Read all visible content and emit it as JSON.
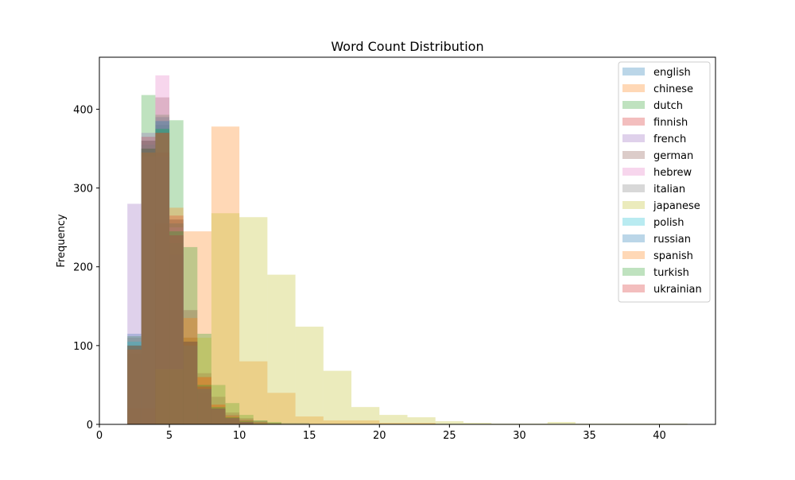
{
  "chart_data": {
    "type": "histogram",
    "title": "Word Count Distribution",
    "xlabel": "",
    "ylabel": "Frequency",
    "xlim": [
      0,
      44
    ],
    "ylim": [
      0,
      466
    ],
    "x_ticks": [
      0,
      5,
      10,
      15,
      20,
      25,
      30,
      35,
      40
    ],
    "y_ticks": [
      0,
      100,
      200,
      300,
      400
    ],
    "grid": false,
    "legend_position": "upper right",
    "bar_alpha": 0.3,
    "series": [
      {
        "name": "english",
        "color": "#1f77b4",
        "bins": [
          [
            2,
            3,
            115
          ],
          [
            3,
            4,
            360
          ],
          [
            4,
            5,
            390
          ],
          [
            5,
            6,
            260
          ],
          [
            6,
            7,
            110
          ],
          [
            7,
            8,
            40
          ],
          [
            8,
            9,
            20
          ],
          [
            9,
            10,
            10
          ],
          [
            10,
            12,
            5
          ],
          [
            12,
            15,
            2
          ]
        ]
      },
      {
        "name": "chinese",
        "color": "#ff7f0e",
        "bins": [
          [
            2,
            4,
            20
          ],
          [
            4,
            6,
            255
          ],
          [
            6,
            8,
            245
          ],
          [
            8,
            10,
            378
          ],
          [
            10,
            12,
            80
          ],
          [
            12,
            14,
            40
          ],
          [
            14,
            16,
            10
          ],
          [
            16,
            20,
            5
          ],
          [
            20,
            24,
            2
          ]
        ]
      },
      {
        "name": "dutch",
        "color": "#2ca02c",
        "bins": [
          [
            2,
            3,
            112
          ],
          [
            3,
            4,
            418
          ],
          [
            4,
            5,
            393
          ],
          [
            5,
            6,
            386
          ],
          [
            6,
            7,
            225
          ],
          [
            7,
            8,
            115
          ],
          [
            8,
            9,
            50
          ],
          [
            9,
            10,
            27
          ],
          [
            10,
            11,
            12
          ],
          [
            11,
            12,
            5
          ],
          [
            12,
            13,
            3
          ]
        ]
      },
      {
        "name": "finnish",
        "color": "#d62728",
        "bins": [
          [
            2,
            3,
            95
          ],
          [
            3,
            4,
            365
          ],
          [
            4,
            5,
            345
          ],
          [
            5,
            6,
            265
          ],
          [
            6,
            7,
            110
          ],
          [
            7,
            8,
            60
          ],
          [
            8,
            9,
            25
          ],
          [
            9,
            10,
            12
          ],
          [
            10,
            11,
            6
          ],
          [
            11,
            12,
            3
          ]
        ]
      },
      {
        "name": "french",
        "color": "#9467bd",
        "bins": [
          [
            2,
            3,
            280
          ],
          [
            3,
            4,
            370
          ],
          [
            4,
            5,
            340
          ],
          [
            5,
            6,
            215
          ],
          [
            6,
            7,
            105
          ],
          [
            7,
            8,
            45
          ],
          [
            8,
            9,
            20
          ],
          [
            9,
            10,
            8
          ],
          [
            10,
            11,
            3
          ]
        ]
      },
      {
        "name": "german",
        "color": "#8c564b",
        "bins": [
          [
            2,
            3,
            90
          ],
          [
            3,
            4,
            360
          ],
          [
            4,
            5,
            415
          ],
          [
            5,
            6,
            260
          ],
          [
            6,
            7,
            145
          ],
          [
            7,
            8,
            65
          ],
          [
            8,
            9,
            35
          ],
          [
            9,
            10,
            15
          ],
          [
            10,
            11,
            8
          ],
          [
            11,
            12,
            4
          ],
          [
            12,
            13,
            2
          ]
        ]
      },
      {
        "name": "hebrew",
        "color": "#e377c2",
        "bins": [
          [
            2,
            3,
            95
          ],
          [
            3,
            4,
            340
          ],
          [
            4,
            5,
            443
          ],
          [
            5,
            6,
            250
          ],
          [
            6,
            7,
            100
          ],
          [
            7,
            8,
            45
          ],
          [
            8,
            9,
            18
          ],
          [
            9,
            10,
            7
          ],
          [
            10,
            11,
            3
          ]
        ]
      },
      {
        "name": "italian",
        "color": "#7f7f7f",
        "bins": [
          [
            2,
            3,
            110
          ],
          [
            3,
            4,
            355
          ],
          [
            4,
            5,
            380
          ],
          [
            5,
            6,
            230
          ],
          [
            6,
            7,
            110
          ],
          [
            7,
            8,
            50
          ],
          [
            8,
            9,
            22
          ],
          [
            9,
            10,
            9
          ],
          [
            10,
            11,
            4
          ]
        ]
      },
      {
        "name": "japanese",
        "color": "#bcbd22",
        "bins": [
          [
            4,
            6,
            70
          ],
          [
            6,
            8,
            110
          ],
          [
            8,
            10,
            268
          ],
          [
            10,
            12,
            263
          ],
          [
            12,
            14,
            190
          ],
          [
            14,
            16,
            124
          ],
          [
            16,
            18,
            68
          ],
          [
            18,
            20,
            22
          ],
          [
            20,
            22,
            12
          ],
          [
            22,
            24,
            9
          ],
          [
            24,
            26,
            4
          ],
          [
            26,
            28,
            2
          ],
          [
            28,
            30,
            1
          ],
          [
            30,
            32,
            1
          ],
          [
            32,
            34,
            3
          ],
          [
            34,
            36,
            1
          ],
          [
            36,
            38,
            1
          ],
          [
            38,
            40,
            1
          ],
          [
            40,
            42,
            1
          ]
        ]
      },
      {
        "name": "polish",
        "color": "#17becf",
        "bins": [
          [
            2,
            3,
            105
          ],
          [
            3,
            4,
            350
          ],
          [
            4,
            5,
            375
          ],
          [
            5,
            6,
            240
          ],
          [
            6,
            7,
            100
          ],
          [
            7,
            8,
            45
          ],
          [
            8,
            9,
            20
          ],
          [
            9,
            10,
            8
          ],
          [
            10,
            11,
            3
          ]
        ]
      },
      {
        "name": "russian",
        "color": "#1f77b4",
        "bins": [
          [
            2,
            3,
            100
          ],
          [
            3,
            4,
            350
          ],
          [
            4,
            5,
            385
          ],
          [
            5,
            6,
            255
          ],
          [
            6,
            7,
            105
          ],
          [
            7,
            8,
            45
          ],
          [
            8,
            9,
            20
          ],
          [
            9,
            10,
            8
          ],
          [
            10,
            11,
            3
          ]
        ]
      },
      {
        "name": "spanish",
        "color": "#ff7f0e",
        "bins": [
          [
            2,
            3,
            95
          ],
          [
            3,
            4,
            345
          ],
          [
            4,
            5,
            370
          ],
          [
            5,
            6,
            275
          ],
          [
            6,
            7,
            135
          ],
          [
            7,
            8,
            60
          ],
          [
            8,
            9,
            25
          ],
          [
            9,
            10,
            10
          ],
          [
            10,
            11,
            4
          ]
        ]
      },
      {
        "name": "turkish",
        "color": "#2ca02c",
        "bins": [
          [
            2,
            3,
            100
          ],
          [
            3,
            4,
            350
          ],
          [
            4,
            5,
            375
          ],
          [
            5,
            6,
            245
          ],
          [
            6,
            7,
            105
          ],
          [
            7,
            8,
            50
          ],
          [
            8,
            9,
            22
          ],
          [
            9,
            10,
            9
          ],
          [
            10,
            11,
            4
          ]
        ]
      },
      {
        "name": "ukrainian",
        "color": "#d62728",
        "bins": [
          [
            2,
            3,
            100
          ],
          [
            3,
            4,
            350
          ],
          [
            4,
            5,
            370
          ],
          [
            5,
            6,
            240
          ],
          [
            6,
            7,
            105
          ],
          [
            7,
            8,
            48
          ],
          [
            8,
            9,
            20
          ],
          [
            9,
            10,
            8
          ],
          [
            10,
            11,
            3
          ]
        ]
      }
    ]
  }
}
